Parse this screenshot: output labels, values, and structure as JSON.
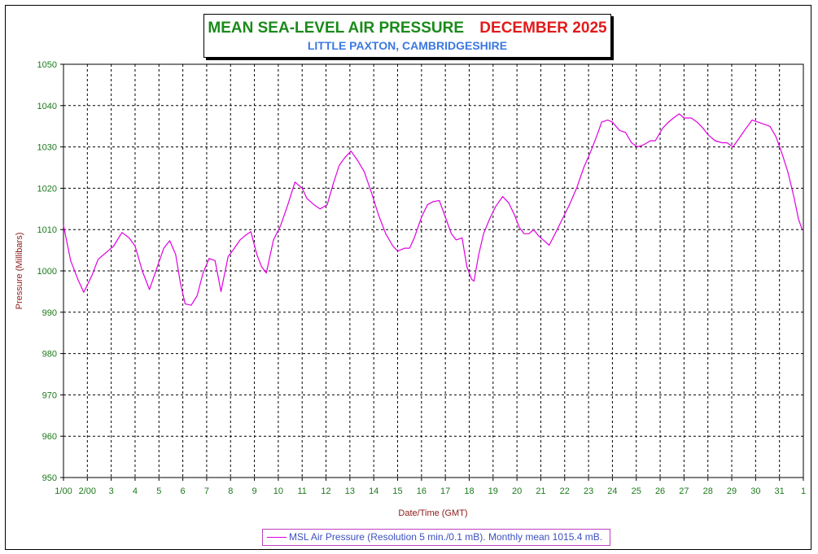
{
  "chart_data": {
    "type": "line",
    "title": "MEAN SEA-LEVEL AIR PRESSURE",
    "title_period": "DECEMBER 2025",
    "subtitle": "LITTLE PAXTON, CAMBRIDGESHIRE",
    "xlabel": "Date/Time (GMT)",
    "ylabel": "Pressure (Millibars)",
    "ylim": [
      950,
      1050
    ],
    "yticks": [
      950,
      960,
      970,
      980,
      990,
      1000,
      1010,
      1020,
      1030,
      1040,
      1050
    ],
    "xlim_days": [
      0,
      31
    ],
    "xtick_labels": [
      "1/00",
      "2/00",
      "3",
      "4",
      "5",
      "6",
      "7",
      "8",
      "9",
      "10",
      "11",
      "12",
      "13",
      "14",
      "15",
      "16",
      "17",
      "18",
      "19",
      "20",
      "21",
      "22",
      "23",
      "24",
      "25",
      "26",
      "27",
      "28",
      "29",
      "30",
      "31",
      "1"
    ],
    "grid": true,
    "legend_position": "bottom-center",
    "series": [
      {
        "name": "MSL Air Pressure (Resolution 5 min./0.1 mB). Monthly mean 1015.4 mB.",
        "color": "#e000e0",
        "points": [
          [
            0.0,
            1011.0
          ],
          [
            0.3,
            1002.5
          ],
          [
            0.6,
            998.0
          ],
          [
            0.85,
            994.8
          ],
          [
            1.2,
            999.0
          ],
          [
            1.45,
            1002.8
          ],
          [
            1.8,
            1004.5
          ],
          [
            2.1,
            1006.0
          ],
          [
            2.45,
            1009.3
          ],
          [
            2.75,
            1008.0
          ],
          [
            3.0,
            1006.0
          ],
          [
            3.3,
            1000.0
          ],
          [
            3.6,
            995.5
          ],
          [
            3.9,
            1000.5
          ],
          [
            4.2,
            1005.5
          ],
          [
            4.45,
            1007.3
          ],
          [
            4.7,
            1004.0
          ],
          [
            4.9,
            997.0
          ],
          [
            5.1,
            992.0
          ],
          [
            5.35,
            991.7
          ],
          [
            5.6,
            994.0
          ],
          [
            5.85,
            999.5
          ],
          [
            6.1,
            1003.0
          ],
          [
            6.35,
            1002.5
          ],
          [
            6.6,
            995.0
          ],
          [
            6.9,
            1003.5
          ],
          [
            7.1,
            1005.0
          ],
          [
            7.4,
            1007.5
          ],
          [
            7.6,
            1008.5
          ],
          [
            7.85,
            1009.5
          ],
          [
            8.1,
            1004.0
          ],
          [
            8.3,
            1001.0
          ],
          [
            8.5,
            999.5
          ],
          [
            8.8,
            1007.5
          ],
          [
            9.1,
            1011.0
          ],
          [
            9.4,
            1016.0
          ],
          [
            9.7,
            1021.5
          ],
          [
            10.0,
            1020.0
          ],
          [
            10.2,
            1017.5
          ],
          [
            10.5,
            1016.0
          ],
          [
            10.75,
            1015.0
          ],
          [
            11.05,
            1016.0
          ],
          [
            11.3,
            1021.0
          ],
          [
            11.55,
            1025.5
          ],
          [
            11.8,
            1027.5
          ],
          [
            12.05,
            1029.0
          ],
          [
            12.35,
            1026.5
          ],
          [
            12.6,
            1024.0
          ],
          [
            12.9,
            1019.0
          ],
          [
            13.2,
            1013.5
          ],
          [
            13.5,
            1009.0
          ],
          [
            13.8,
            1006.0
          ],
          [
            14.0,
            1004.8
          ],
          [
            14.3,
            1005.5
          ],
          [
            14.5,
            1005.5
          ],
          [
            14.7,
            1008.0
          ],
          [
            15.0,
            1013.0
          ],
          [
            15.25,
            1016.0
          ],
          [
            15.5,
            1016.8
          ],
          [
            15.75,
            1017.0
          ],
          [
            16.0,
            1013.0
          ],
          [
            16.25,
            1009.0
          ],
          [
            16.45,
            1007.5
          ],
          [
            16.7,
            1008.0
          ],
          [
            16.9,
            1001.0
          ],
          [
            17.1,
            998.0
          ],
          [
            17.2,
            997.5
          ],
          [
            17.4,
            1004.0
          ],
          [
            17.6,
            1009.0
          ],
          [
            17.85,
            1012.5
          ],
          [
            18.1,
            1015.5
          ],
          [
            18.4,
            1018.0
          ],
          [
            18.65,
            1016.5
          ],
          [
            18.9,
            1013.5
          ],
          [
            19.1,
            1010.5
          ],
          [
            19.3,
            1009.0
          ],
          [
            19.5,
            1009.0
          ],
          [
            19.7,
            1010.0
          ],
          [
            19.9,
            1008.5
          ],
          [
            20.2,
            1007.0
          ],
          [
            20.35,
            1006.2
          ],
          [
            20.6,
            1009.0
          ],
          [
            20.9,
            1012.5
          ],
          [
            21.2,
            1016.0
          ],
          [
            21.5,
            1020.0
          ],
          [
            21.8,
            1025.0
          ],
          [
            22.1,
            1029.0
          ],
          [
            22.4,
            1033.5
          ],
          [
            22.55,
            1036.0
          ],
          [
            22.8,
            1036.5
          ],
          [
            23.0,
            1036.0
          ],
          [
            23.3,
            1034.0
          ],
          [
            23.55,
            1033.5
          ],
          [
            23.8,
            1031.0
          ],
          [
            24.05,
            1030.0
          ],
          [
            24.3,
            1030.5
          ],
          [
            24.6,
            1031.5
          ],
          [
            24.8,
            1031.5
          ],
          [
            25.1,
            1034.5
          ],
          [
            25.35,
            1036.0
          ],
          [
            25.6,
            1037.2
          ],
          [
            25.8,
            1038.0
          ],
          [
            26.0,
            1037.0
          ],
          [
            26.3,
            1037.0
          ],
          [
            26.55,
            1036.0
          ],
          [
            26.8,
            1034.5
          ],
          [
            27.0,
            1033.0
          ],
          [
            27.3,
            1031.5
          ],
          [
            27.6,
            1031.0
          ],
          [
            27.8,
            1031.0
          ],
          [
            28.05,
            1030.0
          ],
          [
            28.3,
            1032.0
          ],
          [
            28.6,
            1034.5
          ],
          [
            28.85,
            1036.5
          ],
          [
            29.1,
            1036.0
          ],
          [
            29.35,
            1035.5
          ],
          [
            29.6,
            1035.0
          ],
          [
            29.85,
            1032.5
          ],
          [
            30.1,
            1028.5
          ],
          [
            30.35,
            1024.0
          ],
          [
            30.6,
            1018.0
          ],
          [
            30.8,
            1012.5
          ],
          [
            30.95,
            1010.0
          ]
        ]
      }
    ]
  }
}
